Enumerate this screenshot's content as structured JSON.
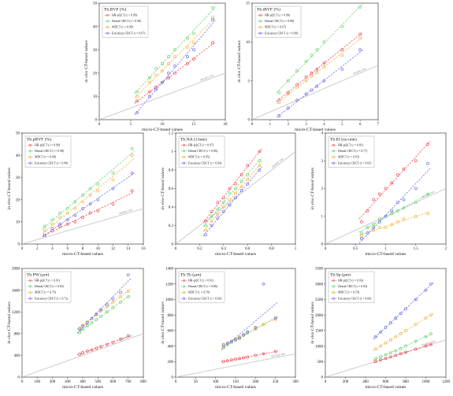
{
  "colors": {
    "hr_pqct": "#f0505a",
    "dental": "#6cd46e",
    "mdct": "#f4b24a",
    "extremity": "#6a72e6",
    "identity": "#c7c7c7",
    "frame": "#222222"
  },
  "chart_data": [
    {
      "type": "scatter",
      "title": "Tb.BVF (%)",
      "xlabel": "micro-CT-based values",
      "ylabel": "in vivo CT-based values",
      "xlim": [
        0,
        20
      ],
      "ylim": [
        0,
        50
      ],
      "xticks": [
        "0",
        "5",
        "10",
        "15",
        "20"
      ],
      "yticks": [
        "0",
        "10",
        "20",
        "30",
        "40",
        "50"
      ],
      "identity_label": "identity line",
      "series": [
        {
          "name": "HR-pQCT (r = 0.99)",
          "color": "#f0505a",
          "x": [
            6,
            8,
            9,
            10,
            11,
            12,
            14,
            15,
            18
          ],
          "y": [
            8,
            12,
            14,
            16,
            18,
            20,
            24,
            26,
            33
          ]
        },
        {
          "name": "Dental CBCT (r = 0.98)",
          "color": "#6cd46e",
          "x": [
            6,
            8,
            9,
            10,
            11,
            12,
            14,
            15,
            18
          ],
          "y": [
            12,
            18,
            22,
            24,
            27,
            30,
            35,
            37,
            48
          ]
        },
        {
          "name": "MDCT (r = 0.99)",
          "color": "#f4b24a",
          "x": [
            6,
            8,
            9,
            10,
            11,
            12,
            14,
            15,
            18
          ],
          "y": [
            10,
            16,
            19,
            21,
            24,
            27,
            31,
            33,
            44
          ]
        },
        {
          "name": "Extremity CBCT (r = 0.97)",
          "color": "#6a72e6",
          "x": [
            6,
            8,
            9,
            10,
            11,
            12,
            14,
            15,
            18
          ],
          "y": [
            3,
            10,
            13,
            16,
            20,
            23,
            27,
            30,
            43
          ]
        }
      ]
    },
    {
      "type": "scatter",
      "title": "Tb.tBVF (%)",
      "xlabel": "micro-CT-based values",
      "ylabel": "in vivo CT-based values",
      "xlim": [
        0,
        7
      ],
      "ylim": [
        0,
        15
      ],
      "xticks": [
        "0",
        "1",
        "2",
        "3",
        "4",
        "5",
        "6",
        "7"
      ],
      "yticks": [
        "0",
        "5",
        "10",
        "15"
      ],
      "identity_label": "identity line",
      "series": [
        {
          "name": "HR-pQCT (r = 0.99)",
          "color": "#f0505a",
          "x": [
            1.5,
            2,
            2.5,
            3,
            3.3,
            3.6,
            4,
            5,
            6
          ],
          "y": [
            2.5,
            3.5,
            4.5,
            5.5,
            6,
            6.5,
            7.3,
            9,
            11
          ]
        },
        {
          "name": "Dental CBCT (r = 0.98)",
          "color": "#6cd46e",
          "x": [
            1.5,
            2,
            2.5,
            3,
            3.3,
            3.6,
            4,
            5,
            6
          ],
          "y": [
            3.5,
            5,
            6.3,
            7.5,
            8.3,
            9,
            10,
            12,
            14.5
          ]
        },
        {
          "name": "MDCT (r = 0.97)",
          "color": "#f4b24a",
          "x": [
            1.5,
            2,
            2.5,
            3,
            3.3,
            3.6,
            4,
            5,
            6
          ],
          "y": [
            2.2,
            3.3,
            4.2,
            5,
            5.6,
            6.1,
            6.8,
            8.3,
            10.5
          ]
        },
        {
          "name": "Extremity CBCT (r = 0.98)",
          "color": "#6a72e6",
          "x": [
            1.5,
            2,
            2.5,
            3,
            3.3,
            3.6,
            4,
            5,
            6
          ],
          "y": [
            0.5,
            1.5,
            2.5,
            3.3,
            3.8,
            4.3,
            5,
            6.5,
            9
          ]
        }
      ]
    },
    {
      "type": "scatter",
      "title": "Tb.pBVF (%)",
      "xlabel": "micro-CT-based values",
      "ylabel": "in vivo CT-based values",
      "xlim": [
        0,
        16
      ],
      "ylim": [
        0,
        50
      ],
      "xticks": [
        "0",
        "2",
        "4",
        "6",
        "8",
        "10",
        "12",
        "14",
        "16"
      ],
      "yticks": [
        "0",
        "10",
        "20",
        "30",
        "40",
        "50"
      ],
      "identity_label": "identity line",
      "series": [
        {
          "name": "HR-pQCT (r = 0.99)",
          "color": "#f0505a",
          "x": [
            3,
            4,
            5,
            6,
            7,
            8,
            9,
            10,
            12,
            14.5
          ],
          "y": [
            4,
            6,
            8,
            9,
            10,
            12,
            14,
            15,
            18,
            24
          ]
        },
        {
          "name": "Dental CBCT (r = 0.98)",
          "color": "#6cd46e",
          "x": [
            3,
            4,
            5,
            6,
            7,
            8,
            9,
            10,
            12,
            14.5
          ],
          "y": [
            8,
            11,
            14,
            16,
            19,
            22,
            25,
            27,
            32,
            43
          ]
        },
        {
          "name": "MDCT (r = 0.98)",
          "color": "#f4b24a",
          "x": [
            3,
            4,
            5,
            6,
            7,
            8,
            9,
            10,
            12,
            14.5
          ],
          "y": [
            6,
            9,
            12,
            14,
            16,
            19,
            22,
            24,
            29,
            40
          ]
        },
        {
          "name": "Extremity CBCT (r = 0.98)",
          "color": "#6a72e6",
          "x": [
            3,
            4,
            5,
            6,
            7,
            8,
            9,
            10,
            12,
            14.5
          ],
          "y": [
            4,
            7,
            9,
            11,
            13,
            16,
            18,
            20,
            25,
            32
          ]
        }
      ]
    },
    {
      "type": "scatter",
      "title": "Tb.NA (1/mm)",
      "xlabel": "micro-CT-based values",
      "ylabel": "in vivo CT-based values",
      "xlim": [
        0,
        1
      ],
      "ylim": [
        0,
        1.2
      ],
      "xticks": [
        "0",
        "0.2",
        "0.4",
        "0.6",
        "0.8",
        "1"
      ],
      "yticks": [
        "0",
        "0.2",
        "0.4",
        "0.6",
        "0.8",
        "1",
        "1.2"
      ],
      "identity_label": "identity line",
      "series": [
        {
          "name": "HR-pQCT (r = 0.97)",
          "color": "#f0505a",
          "x": [
            0.25,
            0.3,
            0.35,
            0.4,
            0.45,
            0.5,
            0.55,
            0.6,
            0.7
          ],
          "y": [
            0.25,
            0.35,
            0.45,
            0.5,
            0.6,
            0.65,
            0.75,
            0.85,
            1.0
          ]
        },
        {
          "name": "Dental CBCT (r = 0.96)",
          "color": "#6cd46e",
          "x": [
            0.25,
            0.3,
            0.35,
            0.4,
            0.45,
            0.5,
            0.55,
            0.6,
            0.7
          ],
          "y": [
            0.2,
            0.3,
            0.38,
            0.45,
            0.55,
            0.6,
            0.68,
            0.75,
            0.9
          ]
        },
        {
          "name": "MDCT (r = 0.95)",
          "color": "#f4b24a",
          "x": [
            0.25,
            0.3,
            0.35,
            0.4,
            0.45,
            0.5,
            0.55,
            0.6,
            0.7
          ],
          "y": [
            0.15,
            0.25,
            0.32,
            0.4,
            0.48,
            0.55,
            0.62,
            0.7,
            0.85
          ]
        },
        {
          "name": "Extremity CBCT (r = 0.94)",
          "color": "#6a72e6",
          "x": [
            0.25,
            0.3,
            0.35,
            0.4,
            0.45,
            0.5,
            0.55,
            0.6,
            0.7
          ],
          "y": [
            0.1,
            0.2,
            0.28,
            0.35,
            0.42,
            0.5,
            0.58,
            0.65,
            0.8
          ]
        }
      ]
    },
    {
      "type": "scatter",
      "title": "Tb.EI (no unit)",
      "xlabel": "micro-CT-based values",
      "ylabel": "in vivo CT-based values",
      "xlim": [
        0,
        2
      ],
      "ylim": [
        0,
        4
      ],
      "xticks": [
        "0",
        "0.5",
        "1",
        "1.5",
        "2"
      ],
      "yticks": [
        "0",
        "1",
        "2",
        "3",
        "4"
      ],
      "identity_label": "identity line",
      "series": [
        {
          "name": "HR-pQCT (r = 0.81)",
          "color": "#f0505a",
          "x": [
            0.6,
            0.7,
            0.8,
            0.9,
            1.0,
            1.1,
            1.2,
            1.3,
            1.5,
            1.7
          ],
          "y": [
            0.8,
            1.2,
            1.6,
            1.8,
            2.0,
            2.2,
            2.5,
            2.7,
            3.0,
            3.6
          ]
        },
        {
          "name": "Dental CBCT (r = 0.77)",
          "color": "#6cd46e",
          "x": [
            0.6,
            0.7,
            0.8,
            0.9,
            1.0,
            1.1,
            1.2,
            1.3,
            1.5,
            1.7
          ],
          "y": [
            0.4,
            0.6,
            0.7,
            0.9,
            1.0,
            1.1,
            1.2,
            1.3,
            1.5,
            1.8
          ]
        },
        {
          "name": "MDCT (r = 0.65)",
          "color": "#f4b24a",
          "x": [
            0.6,
            0.7,
            0.8,
            0.9,
            1.0,
            1.1,
            1.2,
            1.3,
            1.5,
            1.7
          ],
          "y": [
            0.3,
            0.4,
            0.5,
            0.6,
            0.6,
            0.7,
            0.8,
            0.9,
            1.0,
            1.1
          ]
        },
        {
          "name": "Extremity CBCT (r = 0.65)",
          "color": "#6a72e6",
          "x": [
            0.6,
            0.7,
            0.8,
            0.9,
            1.0,
            1.1,
            1.2,
            1.3,
            1.5,
            1.7
          ],
          "y": [
            0.2,
            0.4,
            0.6,
            0.8,
            1.0,
            1.2,
            1.5,
            1.6,
            2.0,
            2.9
          ]
        }
      ]
    },
    {
      "type": "scatter",
      "title": "Tb.PW (μm)",
      "xlabel": "micro-CT-based values",
      "ylabel": "in vivo CT-based values",
      "xlim": [
        0,
        800
      ],
      "ylim": [
        0,
        2000
      ],
      "xticks": [
        "0",
        "100",
        "200",
        "300",
        "400",
        "500",
        "600",
        "700",
        "800"
      ],
      "yticks": [
        "0",
        "400",
        "800",
        "1200",
        "1600",
        "2000"
      ],
      "identity_label": "identity line",
      "series": [
        {
          "name": "HR-pQCT (r = 0.91)",
          "color": "#f0505a",
          "x": [
            380,
            400,
            430,
            460,
            490,
            520,
            560,
            600,
            650,
            700
          ],
          "y": [
            420,
            450,
            480,
            500,
            530,
            560,
            600,
            640,
            700,
            760
          ]
        },
        {
          "name": "Dental CBCT (r = 0.85)",
          "color": "#6cd46e",
          "x": [
            380,
            400,
            430,
            460,
            490,
            520,
            560,
            600,
            650,
            700
          ],
          "y": [
            820,
            880,
            950,
            1000,
            1060,
            1120,
            1200,
            1280,
            1380,
            1480
          ]
        },
        {
          "name": "MDCT (r = 0.75)",
          "color": "#f4b24a",
          "x": [
            380,
            400,
            430,
            460,
            490,
            520,
            560,
            600,
            650,
            700
          ],
          "y": [
            900,
            960,
            1020,
            1080,
            1150,
            1220,
            1300,
            1380,
            1480,
            1580
          ]
        },
        {
          "name": "Extremity CBCT (r = 0.72)",
          "color": "#6a72e6",
          "x": [
            380,
            400,
            430,
            460,
            490,
            520,
            560,
            600,
            650,
            700
          ],
          "y": [
            880,
            940,
            1000,
            1080,
            1160,
            1240,
            1340,
            1440,
            1560,
            1880
          ]
        }
      ]
    },
    {
      "type": "scatter",
      "title": "Tb.Th (μm)",
      "xlabel": "micro-CT-based values",
      "ylabel": "in vivo CT-based values",
      "xlim": [
        0,
        300
      ],
      "ylim": [
        0,
        1400
      ],
      "xticks": [
        "0",
        "50",
        "100",
        "150",
        "200",
        "250",
        "300"
      ],
      "yticks": [
        "0",
        "200",
        "400",
        "600",
        "800",
        "1000",
        "1200",
        "1400"
      ],
      "identity_label": "identity line",
      "series": [
        {
          "name": "HR-pQCT (r = 0.91)",
          "color": "#f0505a",
          "x": [
            120,
            130,
            140,
            150,
            160,
            170,
            180,
            200,
            220,
            250
          ],
          "y": [
            200,
            210,
            220,
            230,
            240,
            250,
            260,
            280,
            300,
            330
          ]
        },
        {
          "name": "Dental CBCT (r = 0.86)",
          "color": "#6cd46e",
          "x": [
            120,
            130,
            140,
            150,
            160,
            170,
            180,
            200,
            220,
            250
          ],
          "y": [
            380,
            420,
            450,
            480,
            510,
            540,
            570,
            620,
            680,
            760
          ]
        },
        {
          "name": "MDCT (r = 0.78)",
          "color": "#f4b24a",
          "x": [
            120,
            130,
            140,
            150,
            160,
            170,
            180,
            200,
            220,
            250
          ],
          "y": [
            400,
            430,
            460,
            490,
            520,
            550,
            580,
            630,
            680,
            740
          ]
        },
        {
          "name": "Extremity CBCT (r = 0.60)",
          "color": "#6a72e6",
          "x": [
            120,
            130,
            140,
            150,
            160,
            170,
            180,
            200,
            220,
            250
          ],
          "y": [
            420,
            440,
            460,
            480,
            500,
            540,
            580,
            640,
            1200,
            760
          ]
        }
      ]
    },
    {
      "type": "scatter",
      "title": "Tb.Sp (μm)",
      "xlabel": "micro-CT-based values",
      "ylabel": "in vivo CT-based values",
      "xlim": [
        0,
        1200
      ],
      "ylim": [
        0,
        3500
      ],
      "xticks": [
        "0",
        "200",
        "400",
        "600",
        "800",
        "1000",
        "1200"
      ],
      "yticks": [
        "0",
        "500",
        "1000",
        "1500",
        "2000",
        "2500",
        "3000",
        "3500"
      ],
      "identity_label": "identity line",
      "series": [
        {
          "name": "HR-pQCT (r = 0.93)",
          "color": "#f0505a",
          "x": [
            500,
            550,
            600,
            650,
            700,
            750,
            800,
            900,
            1000,
            1050
          ],
          "y": [
            500,
            550,
            600,
            650,
            700,
            750,
            800,
            900,
            1000,
            1050
          ]
        },
        {
          "name": "Dental CBCT (r = 0.92)",
          "color": "#6cd46e",
          "x": [
            500,
            550,
            600,
            650,
            700,
            750,
            800,
            900,
            1000,
            1050
          ],
          "y": [
            600,
            660,
            720,
            780,
            850,
            920,
            1000,
            1150,
            1300,
            1400
          ]
        },
        {
          "name": "MDCT (r = 0.78)",
          "color": "#f4b24a",
          "x": [
            500,
            550,
            600,
            650,
            700,
            750,
            800,
            900,
            1000,
            1050
          ],
          "y": [
            900,
            1000,
            1100,
            1200,
            1300,
            1400,
            1500,
            1700,
            1900,
            2000
          ]
        },
        {
          "name": "Extremity CBCT (r = 0.66)",
          "color": "#6a72e6",
          "x": [
            500,
            550,
            600,
            650,
            700,
            750,
            800,
            900,
            1000,
            1050
          ],
          "y": [
            1300,
            1450,
            1600,
            1750,
            1900,
            2050,
            2200,
            2500,
            2800,
            3000
          ]
        }
      ]
    }
  ]
}
